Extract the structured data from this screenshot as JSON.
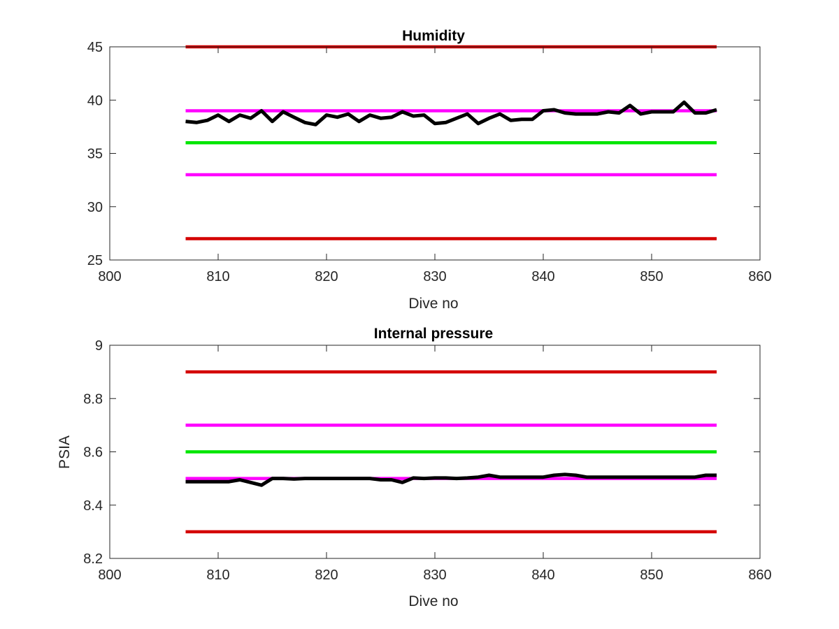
{
  "chart_data": [
    {
      "type": "line",
      "title": "Humidity",
      "xlabel": "Dive no",
      "ylabel": "",
      "xlim": [
        800,
        860
      ],
      "ylim": [
        25,
        45
      ],
      "xticks": [
        800,
        810,
        820,
        830,
        840,
        850,
        860
      ],
      "yticks": [
        25,
        30,
        35,
        40,
        45
      ],
      "grid": false,
      "box": true,
      "series": [
        {
          "color": "#000000",
          "x": [
            807,
            808,
            809,
            810,
            811,
            812,
            813,
            814,
            815,
            816,
            817,
            818,
            819,
            820,
            821,
            822,
            823,
            824,
            825,
            826,
            827,
            828,
            829,
            830,
            831,
            832,
            833,
            834,
            835,
            836,
            837,
            838,
            839,
            840,
            841,
            842,
            843,
            844,
            845,
            846,
            847,
            848,
            849,
            850,
            851,
            852,
            853,
            854,
            855,
            856
          ],
          "y": [
            38.0,
            37.9,
            38.1,
            38.6,
            38.0,
            38.6,
            38.3,
            39.0,
            38.0,
            38.9,
            38.4,
            37.9,
            37.7,
            38.6,
            38.4,
            38.7,
            38.0,
            38.6,
            38.3,
            38.4,
            38.9,
            38.5,
            38.6,
            37.8,
            37.9,
            38.3,
            38.7,
            37.8,
            38.3,
            38.7,
            38.1,
            38.2,
            38.2,
            39.0,
            39.1,
            38.8,
            38.7,
            38.7,
            38.7,
            38.9,
            38.8,
            39.5,
            38.7,
            38.9,
            38.9,
            38.9,
            39.8,
            38.8,
            38.8,
            39.1
          ]
        },
        {
          "color": "#d40000",
          "x": [
            807,
            856
          ],
          "y": [
            45,
            45
          ]
        },
        {
          "color": "#ff00ff",
          "x": [
            807,
            856
          ],
          "y": [
            39,
            39
          ]
        },
        {
          "color": "#00e600",
          "x": [
            807,
            856
          ],
          "y": [
            36,
            36
          ]
        },
        {
          "color": "#ff00ff",
          "x": [
            807,
            856
          ],
          "y": [
            33,
            33
          ]
        },
        {
          "color": "#d40000",
          "x": [
            807,
            856
          ],
          "y": [
            27,
            27
          ]
        }
      ]
    },
    {
      "type": "line",
      "title": "Internal pressure",
      "xlabel": "Dive no",
      "ylabel": "PSIA",
      "xlim": [
        800,
        860
      ],
      "ylim": [
        8.2,
        9.0
      ],
      "xticks": [
        800,
        810,
        820,
        830,
        840,
        850,
        860
      ],
      "yticks": [
        "8.2",
        "8.4",
        "8.6",
        "8.8",
        "9"
      ],
      "grid": false,
      "box": true,
      "series": [
        {
          "color": "#000000",
          "x": [
            807,
            808,
            809,
            810,
            811,
            812,
            813,
            814,
            815,
            816,
            817,
            818,
            819,
            820,
            821,
            822,
            823,
            824,
            825,
            826,
            827,
            828,
            829,
            830,
            831,
            832,
            833,
            834,
            835,
            836,
            837,
            838,
            839,
            840,
            841,
            842,
            843,
            844,
            845,
            846,
            847,
            848,
            849,
            850,
            851,
            852,
            853,
            854,
            855,
            856
          ],
          "y": [
            8.488,
            8.488,
            8.488,
            8.488,
            8.488,
            8.495,
            8.485,
            8.475,
            8.5,
            8.5,
            8.498,
            8.5,
            8.5,
            8.5,
            8.5,
            8.5,
            8.5,
            8.5,
            8.495,
            8.495,
            8.485,
            8.502,
            8.5,
            8.502,
            8.502,
            8.5,
            8.502,
            8.505,
            8.512,
            8.505,
            8.505,
            8.505,
            8.505,
            8.505,
            8.512,
            8.515,
            8.512,
            8.505,
            8.505,
            8.505,
            8.505,
            8.505,
            8.505,
            8.505,
            8.505,
            8.505,
            8.505,
            8.505,
            8.512,
            8.512
          ]
        },
        {
          "color": "#d40000",
          "x": [
            807,
            856
          ],
          "y": [
            8.9,
            8.9
          ]
        },
        {
          "color": "#ff00ff",
          "x": [
            807,
            856
          ],
          "y": [
            8.7,
            8.7
          ]
        },
        {
          "color": "#00e600",
          "x": [
            807,
            856
          ],
          "y": [
            8.6,
            8.6
          ]
        },
        {
          "color": "#ff00ff",
          "x": [
            807,
            856
          ],
          "y": [
            8.5,
            8.5
          ]
        },
        {
          "color": "#d40000",
          "x": [
            807,
            856
          ],
          "y": [
            8.3,
            8.3
          ]
        }
      ]
    }
  ]
}
